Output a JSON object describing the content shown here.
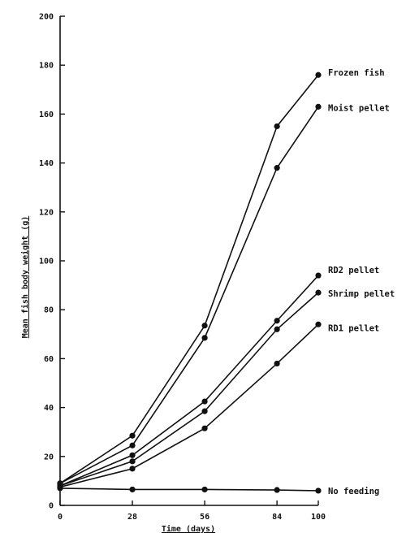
{
  "chart_data": {
    "type": "line",
    "title": "",
    "xlabel": "Time (days)",
    "ylabel": "Mean fish body weight (g)",
    "x": [
      0,
      28,
      56,
      84,
      100
    ],
    "xticks": [
      "0",
      "28",
      "56",
      "84",
      "100"
    ],
    "yticks": [
      "0",
      "20",
      "40",
      "60",
      "80",
      "100",
      "120",
      "140",
      "160",
      "180",
      "200"
    ],
    "xlim": [
      0,
      100
    ],
    "ylim": [
      0,
      200
    ],
    "grid": false,
    "legend": "inline labels at line ends",
    "series": [
      {
        "name": "Frozen fish",
        "values": [
          9,
          28.5,
          73.5,
          155,
          176
        ]
      },
      {
        "name": "Moist pellet",
        "values": [
          9,
          24.5,
          68.5,
          138,
          163
        ]
      },
      {
        "name": "RD2 pellet",
        "values": [
          8,
          20.5,
          42.5,
          75.5,
          94
        ]
      },
      {
        "name": "Shrimp pellet",
        "values": [
          8,
          18,
          38.5,
          72,
          87
        ]
      },
      {
        "name": "RD1 pellet",
        "values": [
          7.5,
          15,
          31.5,
          58,
          74
        ]
      },
      {
        "name": "No feeding",
        "values": [
          7,
          6.5,
          6.5,
          6.3,
          6
        ]
      }
    ]
  }
}
